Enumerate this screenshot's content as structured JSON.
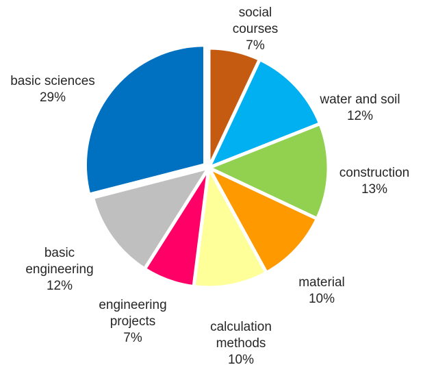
{
  "chart_data": {
    "type": "pie",
    "title": "",
    "start_angle_deg": 0,
    "direction": "clockwise",
    "slices": [
      {
        "label_lines": [
          "social",
          "courses"
        ],
        "value": 7,
        "value_label": "7%",
        "color": "#C55A11"
      },
      {
        "label_lines": [
          "water and soil"
        ],
        "value": 12,
        "value_label": "12%",
        "color": "#00B0F0"
      },
      {
        "label_lines": [
          "construction"
        ],
        "value": 13,
        "value_label": "13%",
        "color": "#92D050"
      },
      {
        "label_lines": [
          "material"
        ],
        "value": 10,
        "value_label": "10%",
        "color": "#FF9900"
      },
      {
        "label_lines": [
          "calculation",
          "methods"
        ],
        "value": 10,
        "value_label": "10%",
        "color": "#FFFF99"
      },
      {
        "label_lines": [
          "engineering",
          "projects"
        ],
        "value": 7,
        "value_label": "7%",
        "color": "#FF0066"
      },
      {
        "label_lines": [
          "basic",
          "engineering"
        ],
        "value": 12,
        "value_label": "12%",
        "color": "#BFBFBF"
      },
      {
        "label_lines": [
          "basic sciences"
        ],
        "value": 29,
        "value_label": "29%",
        "color": "#0070C0"
      }
    ]
  }
}
